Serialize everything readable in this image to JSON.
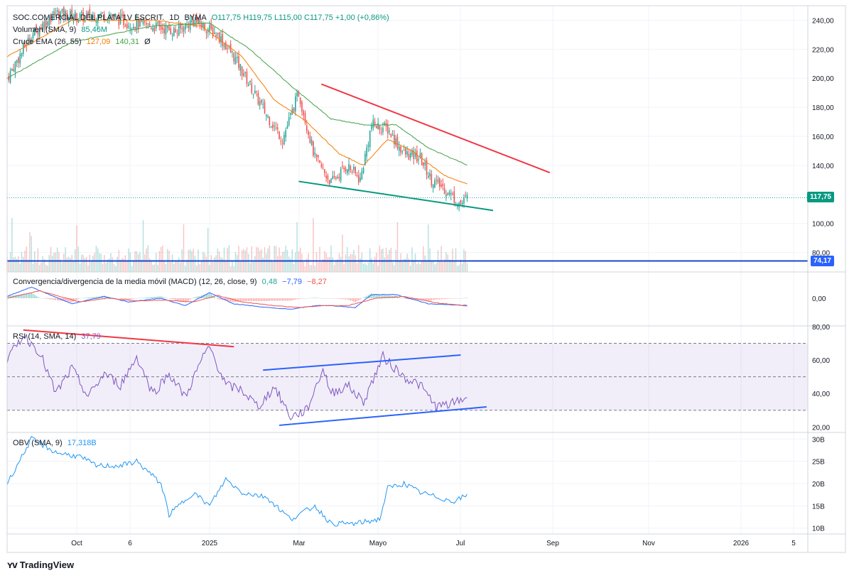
{
  "header": {
    "symbol": "SOC.COMERCIAL DEL PLATA 1V ESCRIT.",
    "interval": "1D",
    "exchange": "BYMA",
    "ohlc": "O117,75 H119,75 L115,00 C117,75 +1,00 (+0,86%)",
    "volume_legend": "Volumen (SMA, 9)",
    "volume_value": "85,46M",
    "ema_legend": "Cruce EMA (26, 55)",
    "ema_fast": "127,09",
    "ema_slow": "140,31",
    "ema_extra": "Ø",
    "macd_legend": "Convergencia/divergencia de la media móvil (MACD) (12, 26, close, 9)",
    "macd_hist": "0,48",
    "macd_line": "−7,79",
    "macd_signal": "−8,27",
    "rsi_legend": "RSI (14, SMA, 14)",
    "rsi_value": "37,79",
    "obv_legend": "OBV (SMA, 9)",
    "obv_value": "17,318B"
  },
  "price_badges": {
    "last": "117,75",
    "level": "74,17"
  },
  "colors": {
    "up": "#26a69a",
    "down": "#ef5350",
    "ema_fast": "#f57c00",
    "ema_slow": "#43a047",
    "macd": "#2962ff",
    "signal": "#ef5350",
    "rsi": "#7e57c2",
    "obv": "#2196f3",
    "trend_red": "#f23645",
    "trend_green": "#089981",
    "trend_blue": "#2962ff",
    "hline": "#1848cc"
  },
  "branding": "TradingView",
  "chart_data": {
    "type": "candlestick",
    "x_ticks": [
      "Oct",
      "6",
      "2025",
      "Mar",
      "Mayo",
      "Jul",
      "Sep",
      "Nov",
      "2026",
      "5"
    ],
    "price_ticks": [
      "240,00",
      "220,00",
      "200,00",
      "180,00",
      "160,00",
      "140,00",
      "120,00",
      "100,00",
      "80,00"
    ],
    "price_range": [
      72,
      250
    ],
    "macd_ticks": [
      "0,00"
    ],
    "rsi_ticks": [
      "80,00",
      "60,00",
      "40,00",
      "20,00"
    ],
    "rsi_range": [
      18,
      80
    ],
    "obv_ticks": [
      "30B",
      "25B",
      "20B",
      "15B",
      "10B"
    ],
    "obv_range": [
      9,
      31
    ],
    "close_anchors": [
      [
        0,
        200
      ],
      [
        15,
        230
      ],
      [
        30,
        245
      ],
      [
        45,
        242
      ],
      [
        60,
        244
      ],
      [
        75,
        238
      ],
      [
        90,
        236
      ],
      [
        105,
        232
      ],
      [
        115,
        240
      ],
      [
        130,
        230
      ],
      [
        140,
        215
      ],
      [
        150,
        195
      ],
      [
        160,
        175
      ],
      [
        170,
        158
      ],
      [
        180,
        190
      ],
      [
        190,
        145
      ],
      [
        200,
        128
      ],
      [
        210,
        140
      ],
      [
        218,
        130
      ],
      [
        225,
        168
      ],
      [
        235,
        165
      ],
      [
        245,
        148
      ],
      [
        255,
        145
      ],
      [
        262,
        130
      ],
      [
        270,
        124
      ],
      [
        280,
        113
      ],
      [
        284,
        117.75
      ]
    ],
    "ema_fast_anchors": [
      [
        0,
        215
      ],
      [
        40,
        240
      ],
      [
        90,
        240
      ],
      [
        120,
        236
      ],
      [
        145,
        215
      ],
      [
        165,
        185
      ],
      [
        185,
        170
      ],
      [
        205,
        148
      ],
      [
        220,
        140
      ],
      [
        235,
        158
      ],
      [
        250,
        150
      ],
      [
        270,
        133
      ],
      [
        284,
        127.09
      ]
    ],
    "ema_slow_anchors": [
      [
        0,
        200
      ],
      [
        40,
        225
      ],
      [
        90,
        236
      ],
      [
        125,
        238
      ],
      [
        150,
        220
      ],
      [
        175,
        195
      ],
      [
        200,
        172
      ],
      [
        220,
        168
      ],
      [
        240,
        168
      ],
      [
        260,
        152
      ],
      [
        284,
        140.31
      ]
    ],
    "macd_anchors": [
      [
        0,
        2
      ],
      [
        15,
        12
      ],
      [
        40,
        -6
      ],
      [
        60,
        2
      ],
      [
        75,
        -4
      ],
      [
        95,
        0
      ],
      [
        110,
        -8
      ],
      [
        125,
        6
      ],
      [
        140,
        -6
      ],
      [
        160,
        -10
      ],
      [
        175,
        -12
      ],
      [
        190,
        -8
      ],
      [
        200,
        -8
      ],
      [
        215,
        -10
      ],
      [
        225,
        4
      ],
      [
        240,
        4
      ],
      [
        260,
        -6
      ],
      [
        284,
        -7.79
      ]
    ],
    "signal_anchors": [
      [
        0,
        0
      ],
      [
        20,
        8
      ],
      [
        45,
        -4
      ],
      [
        62,
        0
      ],
      [
        80,
        -3
      ],
      [
        97,
        -2
      ],
      [
        115,
        -4
      ],
      [
        130,
        3
      ],
      [
        145,
        -4
      ],
      [
        165,
        -8
      ],
      [
        180,
        -10
      ],
      [
        195,
        -8
      ],
      [
        210,
        -8
      ],
      [
        228,
        0
      ],
      [
        245,
        2
      ],
      [
        265,
        -5
      ],
      [
        284,
        -8.27
      ]
    ],
    "rsi_anchors": [
      [
        0,
        60
      ],
      [
        10,
        75
      ],
      [
        20,
        65
      ],
      [
        30,
        40
      ],
      [
        40,
        55
      ],
      [
        50,
        38
      ],
      [
        60,
        52
      ],
      [
        70,
        45
      ],
      [
        80,
        62
      ],
      [
        90,
        40
      ],
      [
        100,
        52
      ],
      [
        110,
        38
      ],
      [
        120,
        60
      ],
      [
        125,
        68
      ],
      [
        135,
        45
      ],
      [
        145,
        42
      ],
      [
        155,
        32
      ],
      [
        165,
        44
      ],
      [
        175,
        26
      ],
      [
        185,
        30
      ],
      [
        195,
        55
      ],
      [
        200,
        40
      ],
      [
        210,
        45
      ],
      [
        220,
        35
      ],
      [
        232,
        62
      ],
      [
        245,
        50
      ],
      [
        255,
        45
      ],
      [
        265,
        32
      ],
      [
        275,
        34
      ],
      [
        284,
        37.79
      ]
    ],
    "obv_anchors": [
      [
        0,
        20
      ],
      [
        15,
        30
      ],
      [
        30,
        27
      ],
      [
        45,
        26
      ],
      [
        55,
        24
      ],
      [
        70,
        24
      ],
      [
        80,
        25
      ],
      [
        95,
        20
      ],
      [
        100,
        13
      ],
      [
        115,
        18
      ],
      [
        125,
        15
      ],
      [
        135,
        21
      ],
      [
        145,
        18
      ],
      [
        160,
        17
      ],
      [
        175,
        12
      ],
      [
        190,
        15
      ],
      [
        200,
        11
      ],
      [
        215,
        11
      ],
      [
        230,
        12
      ],
      [
        235,
        19
      ],
      [
        245,
        20
      ],
      [
        255,
        18
      ],
      [
        265,
        17
      ],
      [
        275,
        16
      ],
      [
        284,
        17.318
      ]
    ],
    "trendlines": [
      {
        "pane": "price",
        "color": "red",
        "from": [
          194,
          196
        ],
        "to": [
          335,
          135
        ]
      },
      {
        "pane": "price",
        "color": "green",
        "from": [
          180,
          129
        ],
        "to": [
          300,
          109
        ]
      },
      {
        "pane": "rsi",
        "color": "red",
        "from": [
          10,
          78
        ],
        "to": [
          140,
          68
        ]
      },
      {
        "pane": "rsi",
        "color": "blue",
        "from": [
          158,
          54
        ],
        "to": [
          280,
          63
        ]
      },
      {
        "pane": "rsi",
        "color": "blue",
        "from": [
          168,
          21
        ],
        "to": [
          296,
          32
        ]
      }
    ],
    "hline": 74.17,
    "last_price": 117.75,
    "rsi_band": [
      30,
      70
    ],
    "rsi_mid": 50
  }
}
